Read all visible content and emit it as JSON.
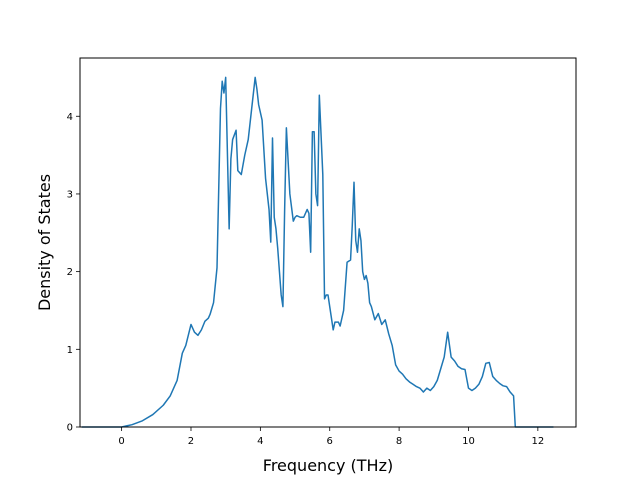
{
  "chart_data": {
    "type": "line",
    "title": "",
    "xlabel": "Frequency (THz)",
    "ylabel": "Density of States",
    "xlim": [
      -1.2,
      13.1
    ],
    "ylim": [
      0,
      4.75
    ],
    "xticks": [
      0,
      2,
      4,
      6,
      8,
      10,
      12
    ],
    "yticks": [
      0,
      1,
      2,
      3,
      4
    ],
    "xtick_labels": [
      "0",
      "2",
      "4",
      "6",
      "8",
      "10",
      "12"
    ],
    "ytick_labels": [
      "0",
      "1",
      "2",
      "3",
      "4"
    ],
    "grid": false,
    "legend": "none",
    "line_color": "#1f77b4",
    "series": [
      {
        "x": [
          -1.15,
          -0.5,
          0.0,
          0.3,
          0.6,
          0.9,
          1.2,
          1.4,
          1.6,
          1.75,
          1.85,
          2.0,
          2.1,
          2.2,
          2.3,
          2.4,
          2.5,
          2.55,
          2.65,
          2.75,
          2.85,
          2.9,
          2.95,
          3.0,
          3.1,
          3.15,
          3.2,
          3.3,
          3.35,
          3.45,
          3.55,
          3.65,
          3.75,
          3.85,
          3.9,
          3.95,
          4.05,
          4.15,
          4.25,
          4.3,
          4.35,
          4.4,
          4.45,
          4.5,
          4.6,
          4.65,
          4.7,
          4.75,
          4.85,
          4.95,
          5.0,
          5.05,
          5.15,
          5.25,
          5.35,
          5.4,
          5.45,
          5.5,
          5.55,
          5.6,
          5.65,
          5.7,
          5.8,
          5.85,
          5.9,
          5.95,
          6.0,
          6.1,
          6.15,
          6.25,
          6.3,
          6.4,
          6.5,
          6.6,
          6.65,
          6.7,
          6.75,
          6.8,
          6.85,
          6.9,
          6.95,
          7.0,
          7.05,
          7.1,
          7.15,
          7.2,
          7.3,
          7.4,
          7.5,
          7.6,
          7.7,
          7.8,
          7.9,
          8.0,
          8.1,
          8.2,
          8.3,
          8.4,
          8.5,
          8.6,
          8.7,
          8.8,
          8.9,
          9.0,
          9.1,
          9.2,
          9.3,
          9.4,
          9.5,
          9.6,
          9.7,
          9.8,
          9.9,
          10.0,
          10.1,
          10.2,
          10.3,
          10.4,
          10.5,
          10.6,
          10.7,
          10.8,
          10.9,
          11.0,
          11.1,
          11.2,
          11.3,
          11.35,
          11.5,
          12.0,
          12.45
        ],
        "y": [
          0,
          0,
          0,
          0.03,
          0.08,
          0.16,
          0.28,
          0.4,
          0.6,
          0.95,
          1.05,
          1.32,
          1.22,
          1.18,
          1.25,
          1.36,
          1.4,
          1.45,
          1.6,
          2.05,
          4.1,
          4.45,
          4.3,
          4.5,
          2.55,
          3.45,
          3.7,
          3.82,
          3.3,
          3.25,
          3.5,
          3.7,
          4.1,
          4.5,
          4.35,
          4.15,
          3.95,
          3.2,
          2.8,
          2.38,
          3.72,
          2.7,
          2.55,
          2.3,
          1.7,
          1.55,
          2.8,
          3.85,
          3.0,
          2.65,
          2.7,
          2.72,
          2.7,
          2.7,
          2.8,
          2.75,
          2.25,
          3.8,
          3.8,
          3.0,
          2.85,
          4.27,
          3.25,
          1.65,
          1.7,
          1.7,
          1.55,
          1.25,
          1.35,
          1.35,
          1.3,
          1.5,
          2.12,
          2.15,
          2.6,
          3.15,
          2.4,
          2.25,
          2.55,
          2.4,
          2.0,
          1.9,
          1.95,
          1.85,
          1.6,
          1.55,
          1.38,
          1.46,
          1.32,
          1.38,
          1.2,
          1.05,
          0.8,
          0.72,
          0.68,
          0.62,
          0.58,
          0.55,
          0.52,
          0.5,
          0.45,
          0.5,
          0.47,
          0.52,
          0.6,
          0.75,
          0.9,
          1.22,
          0.9,
          0.85,
          0.78,
          0.75,
          0.74,
          0.5,
          0.47,
          0.5,
          0.55,
          0.65,
          0.82,
          0.83,
          0.65,
          0.6,
          0.56,
          0.53,
          0.52,
          0.45,
          0.4,
          0,
          0,
          0,
          0
        ]
      }
    ]
  }
}
